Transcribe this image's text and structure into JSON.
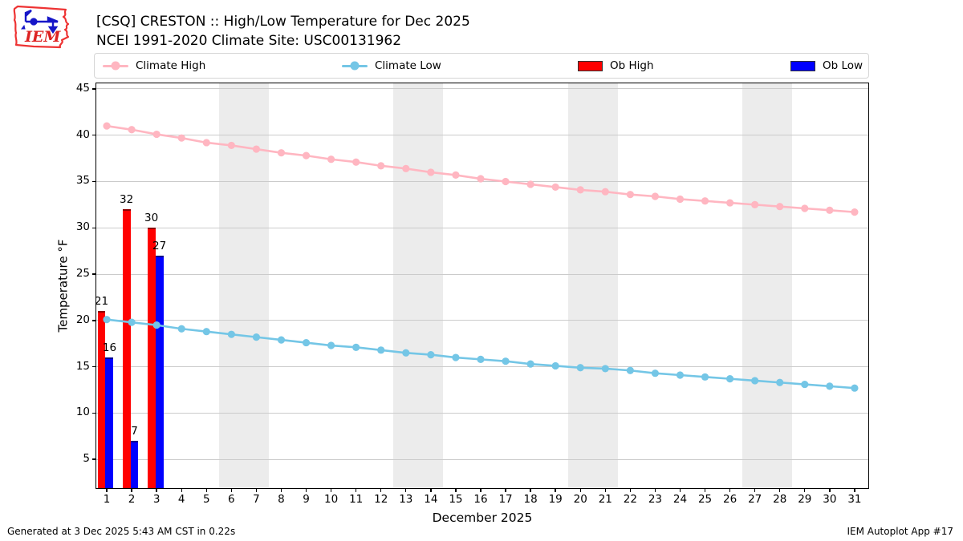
{
  "header": {
    "title_line1": "[CSQ] CRESTON :: High/Low Temperature for Dec 2025",
    "title_line2": "NCEI 1991-2020 Climate Site: USC00131962",
    "logo_text": "IEM"
  },
  "legend": {
    "items": [
      {
        "label": "Climate High",
        "type": "line",
        "color": "#ffb6c1"
      },
      {
        "label": "Climate Low",
        "type": "line",
        "color": "#74c6e6"
      },
      {
        "label": "Ob High",
        "type": "patch",
        "color": "#ff0000"
      },
      {
        "label": "Ob Low",
        "type": "patch",
        "color": "#0000ff"
      }
    ]
  },
  "chart_data": {
    "type": "line+bar",
    "title": "[CSQ] CRESTON :: High/Low Temperature for Dec 2025",
    "subtitle": "NCEI 1991-2020 Climate Site: USC00131962",
    "xlabel": "December 2025",
    "ylabel": "Temperature °F",
    "xticks": [
      1,
      2,
      3,
      4,
      5,
      6,
      7,
      8,
      9,
      10,
      11,
      12,
      13,
      14,
      15,
      16,
      17,
      18,
      19,
      20,
      21,
      22,
      23,
      24,
      25,
      26,
      27,
      28,
      29,
      30,
      31
    ],
    "yticks": [
      5,
      10,
      15,
      20,
      25,
      30,
      35,
      40,
      45
    ],
    "xlim": [
      0.58,
      31.55
    ],
    "ylim": [
      1.9,
      45.6
    ],
    "grid": "horizontal",
    "weekend_bands": [
      [
        5.5,
        7.5
      ],
      [
        12.5,
        14.5
      ],
      [
        19.5,
        21.5
      ],
      [
        26.5,
        28.5
      ]
    ],
    "series": [
      {
        "name": "Climate High",
        "type": "line",
        "color": "#ffb6c1",
        "x": [
          1,
          2,
          3,
          4,
          5,
          6,
          7,
          8,
          9,
          10,
          11,
          12,
          13,
          14,
          15,
          16,
          17,
          18,
          19,
          20,
          21,
          22,
          23,
          24,
          25,
          26,
          27,
          28,
          29,
          30,
          31
        ],
        "values": [
          41.0,
          40.6,
          40.1,
          39.7,
          39.2,
          38.9,
          38.5,
          38.1,
          37.8,
          37.4,
          37.1,
          36.7,
          36.4,
          36.0,
          35.7,
          35.3,
          35.0,
          34.7,
          34.4,
          34.1,
          33.9,
          33.6,
          33.4,
          33.1,
          32.9,
          32.7,
          32.5,
          32.3,
          32.1,
          31.9,
          31.7
        ]
      },
      {
        "name": "Climate Low",
        "type": "line",
        "color": "#74c6e6",
        "x": [
          1,
          2,
          3,
          4,
          5,
          6,
          7,
          8,
          9,
          10,
          11,
          12,
          13,
          14,
          15,
          16,
          17,
          18,
          19,
          20,
          21,
          22,
          23,
          24,
          25,
          26,
          27,
          28,
          29,
          30,
          31
        ],
        "values": [
          20.1,
          19.8,
          19.5,
          19.1,
          18.8,
          18.5,
          18.2,
          17.9,
          17.6,
          17.3,
          17.1,
          16.8,
          16.5,
          16.3,
          16.0,
          15.8,
          15.6,
          15.3,
          15.1,
          14.9,
          14.8,
          14.6,
          14.3,
          14.1,
          13.9,
          13.7,
          13.5,
          13.3,
          13.1,
          12.9,
          12.7
        ]
      },
      {
        "name": "Ob High",
        "type": "bar",
        "color": "#ff0000",
        "edge": "#8b0000",
        "offset": [
          -0.37,
          -0.05
        ],
        "x": [
          1,
          2,
          3
        ],
        "values": [
          21,
          32,
          30
        ]
      },
      {
        "name": "Ob Low",
        "type": "bar",
        "color": "#0000ff",
        "edge": "#00008b",
        "offset": [
          -0.05,
          0.27
        ],
        "x": [
          1,
          2,
          3
        ],
        "values": [
          16,
          7,
          27
        ]
      }
    ]
  },
  "footer": {
    "left": "Generated at 3 Dec 2025 5:43 AM CST in 0.22s",
    "right": "IEM Autoplot App #17"
  }
}
